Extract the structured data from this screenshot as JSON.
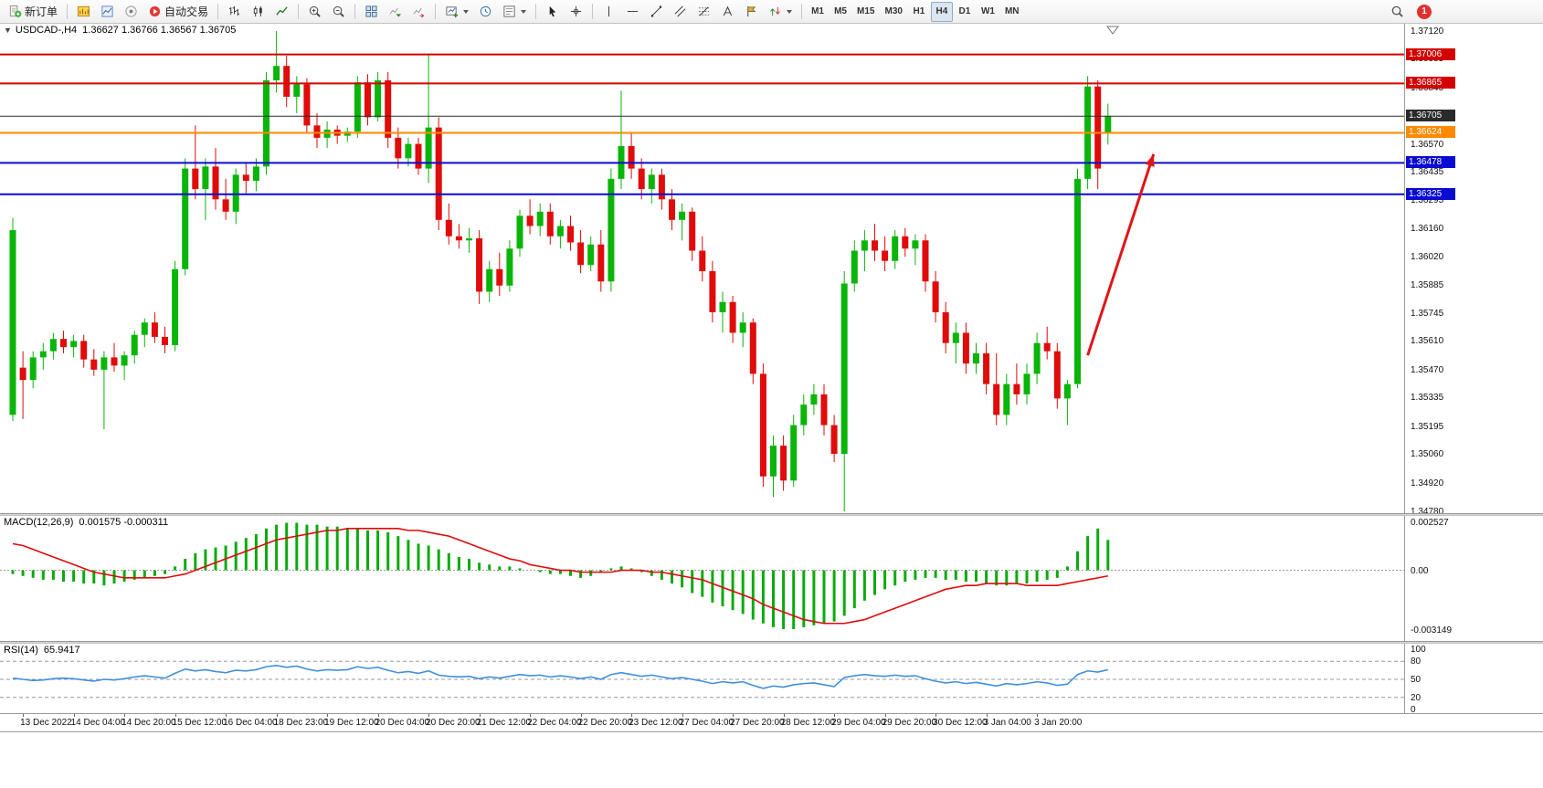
{
  "toolbar": {
    "new_order_label": "新订单",
    "auto_trading_label": "自动交易",
    "timeframes": [
      "M1",
      "M5",
      "M15",
      "M30",
      "H1",
      "H4",
      "D1",
      "W1",
      "MN"
    ],
    "active_timeframe": "H4",
    "notification_count": "1"
  },
  "chart": {
    "collapse_glyph": "▼",
    "symbol_period": "USDCAD-,H4",
    "ohlc": "1.36627 1.36766 1.36567 1.36705"
  },
  "indicators": {
    "macd": {
      "name": "MACD(12,26,9)",
      "values": "0.001575 -0.000311"
    },
    "rsi": {
      "name": "RSI(14)",
      "values": "65.9417"
    }
  },
  "chart_data": {
    "type": "candlestick",
    "symbol": "USDCAD",
    "period": "H4",
    "price_range": {
      "top": 1.3712,
      "bottom": 1.3478
    },
    "colors": {
      "up": "#09b509",
      "down": "#e00b0b",
      "macd_hist": "#0caa0c",
      "macd_signal": "#e00b0b",
      "rsi_line": "#3f8fdd",
      "arrow": "#e01515"
    },
    "candles": [
      [
        1.3525,
        1.3621,
        1.3522,
        1.3615
      ],
      [
        1.3548,
        1.3556,
        1.3523,
        1.3542
      ],
      [
        1.3542,
        1.3556,
        1.3538,
        1.3553
      ],
      [
        1.3553,
        1.356,
        1.3547,
        1.3556
      ],
      [
        1.3556,
        1.3565,
        1.3552,
        1.3562
      ],
      [
        1.3562,
        1.3566,
        1.3555,
        1.3558
      ],
      [
        1.3558,
        1.3564,
        1.3553,
        1.3561
      ],
      [
        1.3561,
        1.3564,
        1.3548,
        1.3552
      ],
      [
        1.3552,
        1.3557,
        1.3544,
        1.3547
      ],
      [
        1.3547,
        1.3556,
        1.3518,
        1.3553
      ],
      [
        1.3553,
        1.356,
        1.3546,
        1.3549
      ],
      [
        1.3549,
        1.3556,
        1.3542,
        1.3554
      ],
      [
        1.3554,
        1.3566,
        1.355,
        1.3564
      ],
      [
        1.3564,
        1.3572,
        1.3558,
        1.357
      ],
      [
        1.357,
        1.3575,
        1.356,
        1.3563
      ],
      [
        1.3563,
        1.3568,
        1.3555,
        1.3559
      ],
      [
        1.3559,
        1.36,
        1.3556,
        1.3596
      ],
      [
        1.3596,
        1.365,
        1.3593,
        1.3645
      ],
      [
        1.3645,
        1.3666,
        1.363,
        1.3635
      ],
      [
        1.3635,
        1.365,
        1.362,
        1.3646
      ],
      [
        1.3646,
        1.3655,
        1.3625,
        1.363
      ],
      [
        1.363,
        1.364,
        1.362,
        1.3624
      ],
      [
        1.3624,
        1.3645,
        1.3618,
        1.3642
      ],
      [
        1.3642,
        1.3648,
        1.3633,
        1.3639
      ],
      [
        1.3639,
        1.365,
        1.3634,
        1.3646
      ],
      [
        1.3646,
        1.3692,
        1.3642,
        1.3688
      ],
      [
        1.3688,
        1.3712,
        1.3682,
        1.3695
      ],
      [
        1.3695,
        1.37,
        1.3675,
        1.368
      ],
      [
        1.368,
        1.369,
        1.3672,
        1.3686
      ],
      [
        1.3686,
        1.3689,
        1.3662,
        1.3666
      ],
      [
        1.3666,
        1.3672,
        1.3655,
        1.366
      ],
      [
        1.366,
        1.3668,
        1.3655,
        1.3664
      ],
      [
        1.3664,
        1.3666,
        1.3657,
        1.3661
      ],
      [
        1.3661,
        1.3665,
        1.3658,
        1.3663
      ],
      [
        1.3663,
        1.369,
        1.366,
        1.3687
      ],
      [
        1.3687,
        1.3691,
        1.3666,
        1.367
      ],
      [
        1.367,
        1.3692,
        1.3668,
        1.3688
      ],
      [
        1.3688,
        1.3692,
        1.3655,
        1.366
      ],
      [
        1.366,
        1.3665,
        1.3645,
        1.365
      ],
      [
        1.365,
        1.366,
        1.3646,
        1.3657
      ],
      [
        1.3657,
        1.366,
        1.3642,
        1.3645
      ],
      [
        1.3645,
        1.3701,
        1.3638,
        1.3665
      ],
      [
        1.3665,
        1.367,
        1.3615,
        1.362
      ],
      [
        1.362,
        1.3628,
        1.3608,
        1.3612
      ],
      [
        1.3612,
        1.3618,
        1.3606,
        1.361
      ],
      [
        1.361,
        1.3616,
        1.3604,
        1.3611
      ],
      [
        1.3611,
        1.3615,
        1.3579,
        1.3585
      ],
      [
        1.3585,
        1.36,
        1.358,
        1.3596
      ],
      [
        1.3596,
        1.3604,
        1.3583,
        1.3588
      ],
      [
        1.3588,
        1.361,
        1.3585,
        1.3606
      ],
      [
        1.3606,
        1.3625,
        1.3602,
        1.3622
      ],
      [
        1.3622,
        1.363,
        1.3613,
        1.3617
      ],
      [
        1.3617,
        1.3628,
        1.3612,
        1.3624
      ],
      [
        1.3624,
        1.3628,
        1.3608,
        1.3612
      ],
      [
        1.3612,
        1.362,
        1.3606,
        1.3617
      ],
      [
        1.3617,
        1.3622,
        1.3605,
        1.3609
      ],
      [
        1.3609,
        1.3615,
        1.3594,
        1.3598
      ],
      [
        1.3598,
        1.3612,
        1.3595,
        1.3608
      ],
      [
        1.3608,
        1.3615,
        1.3585,
        1.359
      ],
      [
        1.359,
        1.3645,
        1.3585,
        1.364
      ],
      [
        1.364,
        1.3683,
        1.3635,
        1.3656
      ],
      [
        1.3656,
        1.3662,
        1.364,
        1.3645
      ],
      [
        1.3645,
        1.365,
        1.363,
        1.3635
      ],
      [
        1.3635,
        1.3645,
        1.3628,
        1.3642
      ],
      [
        1.3642,
        1.3645,
        1.3625,
        1.363
      ],
      [
        1.363,
        1.3635,
        1.3615,
        1.362
      ],
      [
        1.362,
        1.3628,
        1.361,
        1.3624
      ],
      [
        1.3624,
        1.3626,
        1.36,
        1.3605
      ],
      [
        1.3605,
        1.3612,
        1.359,
        1.3595
      ],
      [
        1.3595,
        1.36,
        1.357,
        1.3575
      ],
      [
        1.3575,
        1.3585,
        1.3565,
        1.358
      ],
      [
        1.358,
        1.3583,
        1.356,
        1.3565
      ],
      [
        1.3565,
        1.3575,
        1.3558,
        1.357
      ],
      [
        1.357,
        1.3572,
        1.354,
        1.3545
      ],
      [
        1.3545,
        1.355,
        1.349,
        1.3495
      ],
      [
        1.3495,
        1.3515,
        1.3485,
        1.351
      ],
      [
        1.351,
        1.3515,
        1.3488,
        1.3493
      ],
      [
        1.3493,
        1.3525,
        1.349,
        1.352
      ],
      [
        1.352,
        1.3535,
        1.3515,
        1.353
      ],
      [
        1.353,
        1.354,
        1.3525,
        1.3535
      ],
      [
        1.3535,
        1.354,
        1.3515,
        1.352
      ],
      [
        1.352,
        1.3525,
        1.3502,
        1.3506
      ],
      [
        1.3506,
        1.3595,
        1.3478,
        1.3589
      ],
      [
        1.3589,
        1.361,
        1.3585,
        1.3605
      ],
      [
        1.3605,
        1.3615,
        1.3595,
        1.361
      ],
      [
        1.361,
        1.3618,
        1.36,
        1.3605
      ],
      [
        1.3605,
        1.3612,
        1.3595,
        1.36
      ],
      [
        1.36,
        1.3615,
        1.3596,
        1.3612
      ],
      [
        1.3612,
        1.3616,
        1.3602,
        1.3606
      ],
      [
        1.3606,
        1.3613,
        1.3598,
        1.361
      ],
      [
        1.361,
        1.3613,
        1.3585,
        1.359
      ],
      [
        1.359,
        1.3595,
        1.357,
        1.3575
      ],
      [
        1.3575,
        1.358,
        1.3555,
        1.356
      ],
      [
        1.356,
        1.357,
        1.355,
        1.3565
      ],
      [
        1.3565,
        1.357,
        1.3545,
        1.355
      ],
      [
        1.355,
        1.356,
        1.3545,
        1.3555
      ],
      [
        1.3555,
        1.356,
        1.3535,
        1.354
      ],
      [
        1.354,
        1.3555,
        1.352,
        1.3525
      ],
      [
        1.3525,
        1.3545,
        1.352,
        1.354
      ],
      [
        1.354,
        1.355,
        1.353,
        1.3535
      ],
      [
        1.3535,
        1.355,
        1.353,
        1.3545
      ],
      [
        1.3545,
        1.3565,
        1.354,
        1.356
      ],
      [
        1.356,
        1.3568,
        1.3552,
        1.3556
      ],
      [
        1.3556,
        1.356,
        1.3528,
        1.3533
      ],
      [
        1.3533,
        1.3542,
        1.352,
        1.354
      ],
      [
        1.354,
        1.3645,
        1.3538,
        1.364
      ],
      [
        1.364,
        1.369,
        1.3635,
        1.3685
      ],
      [
        1.3685,
        1.3688,
        1.3635,
        1.3645
      ],
      [
        1.36627,
        1.36766,
        1.36567,
        1.36705
      ]
    ],
    "levels": [
      {
        "price": 1.37006,
        "color": "#d40000",
        "width": 2
      },
      {
        "price": 1.36865,
        "color": "#d40000",
        "width": 2
      },
      {
        "price": 1.36705,
        "color": "#2a2a2a",
        "width": 1
      },
      {
        "price": 1.36624,
        "color": "#ff8a00",
        "width": 2
      },
      {
        "price": 1.36478,
        "color": "#0a0ad0",
        "width": 2
      },
      {
        "price": 1.36325,
        "color": "#0a0ad0",
        "width": 2
      }
    ],
    "price_axis": [
      "1.37120",
      "1.36985",
      "1.36845",
      "1.36705",
      "1.36570",
      "1.36435",
      "1.36295",
      "1.36160",
      "1.36020",
      "1.35885",
      "1.35745",
      "1.35610",
      "1.35470",
      "1.35335",
      "1.35195",
      "1.35060",
      "1.34920",
      "1.34780"
    ],
    "axis_tags": [
      {
        "text": "1.37006",
        "price": 1.37006,
        "color": "#d40000"
      },
      {
        "text": "1.36865",
        "price": 1.36865,
        "color": "#d40000"
      },
      {
        "text": "1.36705",
        "price": 1.36705,
        "color": "#2a2a2a"
      },
      {
        "text": "1.36624",
        "price": 1.36624,
        "color": "#ff8a00"
      },
      {
        "text": "1.36478",
        "price": 1.36478,
        "color": "#0a0ad0"
      },
      {
        "text": "1.36325",
        "price": 1.36325,
        "color": "#0a0ad0"
      }
    ],
    "time_labels": [
      "13 Dec 2022",
      "14 Dec 04:00",
      "14 Dec 20:00",
      "15 Dec 12:00",
      "16 Dec 04:00",
      "18 Dec 23:00",
      "19 Dec 12:00",
      "20 Dec 04:00",
      "20 Dec 20:00",
      "21 Dec 12:00",
      "22 Dec 04:00",
      "22 Dec 20:00",
      "23 Dec 12:00",
      "27 Dec 04:00",
      "27 Dec 20:00",
      "28 Dec 12:00",
      "29 Dec 04:00",
      "29 Dec 20:00",
      "30 Dec 12:00",
      "3 Jan 04:00",
      "3 Jan 20:00"
    ],
    "time_label_start_index": 1,
    "time_label_step": 5,
    "macd": {
      "max": 0.002527,
      "min": -0.003149,
      "scale_labels": [
        "0.002527",
        "0.00",
        "-0.003149"
      ],
      "scale_values": [
        0.002527,
        0,
        -0.003149
      ],
      "histogram": [
        -0.0002,
        -0.0003,
        -0.0004,
        -0.0005,
        -0.0005,
        -0.0006,
        -0.0006,
        -0.0007,
        -0.0007,
        -0.0008,
        -0.0007,
        -0.0006,
        -0.0005,
        -0.0004,
        -0.0003,
        -0.0002,
        0.0002,
        0.0006,
        0.0009,
        0.0011,
        0.0012,
        0.0013,
        0.0015,
        0.0017,
        0.0019,
        0.0022,
        0.0024,
        0.0025,
        0.0025,
        0.0024,
        0.0024,
        0.0023,
        0.0023,
        0.0022,
        0.0022,
        0.0021,
        0.0021,
        0.002,
        0.0018,
        0.0016,
        0.0014,
        0.0013,
        0.0011,
        0.0009,
        0.0007,
        0.0006,
        0.0004,
        0.0003,
        0.0002,
        0.0002,
        0.0001,
        0.0,
        -0.0001,
        -0.0002,
        -0.0002,
        -0.0003,
        -0.0004,
        -0.0003,
        -0.0001,
        0.0001,
        0.0002,
        0.0001,
        -0.0001,
        -0.0003,
        -0.0005,
        -0.0007,
        -0.0009,
        -0.0012,
        -0.0014,
        -0.0017,
        -0.0019,
        -0.0021,
        -0.0023,
        -0.0026,
        -0.0028,
        -0.003,
        -0.0031,
        -0.0031,
        -0.003,
        -0.0029,
        -0.0028,
        -0.0027,
        -0.0024,
        -0.002,
        -0.0016,
        -0.0013,
        -0.001,
        -0.0008,
        -0.0006,
        -0.0005,
        -0.0004,
        -0.0004,
        -0.0005,
        -0.0005,
        -0.0006,
        -0.0006,
        -0.0007,
        -0.0008,
        -0.0008,
        -0.0007,
        -0.0007,
        -0.0006,
        -0.0005,
        -0.0004,
        0.0002,
        0.001,
        0.0018,
        0.0022,
        0.0016
      ],
      "signal": [
        0.0014,
        0.0013,
        0.0011,
        0.0009,
        0.0007,
        0.0005,
        0.0003,
        0.0001,
        -0.0001,
        -0.0002,
        -0.0003,
        -0.0004,
        -0.0004,
        -0.0004,
        -0.0004,
        -0.0004,
        -0.0003,
        -0.0002,
        0.0,
        0.0002,
        0.0004,
        0.0006,
        0.0008,
        0.001,
        0.0012,
        0.0014,
        0.0016,
        0.0017,
        0.0018,
        0.0019,
        0.002,
        0.0021,
        0.0021,
        0.0022,
        0.0022,
        0.0022,
        0.0022,
        0.0022,
        0.0022,
        0.0021,
        0.0021,
        0.002,
        0.0019,
        0.0018,
        0.0016,
        0.0014,
        0.0012,
        0.001,
        0.0008,
        0.0006,
        0.0005,
        0.0003,
        0.0002,
        0.0001,
        0.0,
        0.0,
        -0.0001,
        -0.0001,
        -0.0001,
        -0.0001,
        0.0,
        0.0,
        0.0,
        -0.0001,
        -0.0001,
        -0.0002,
        -0.0003,
        -0.0004,
        -0.0005,
        -0.0007,
        -0.0009,
        -0.0011,
        -0.0013,
        -0.0015,
        -0.0018,
        -0.002,
        -0.0022,
        -0.0024,
        -0.0026,
        -0.0027,
        -0.0028,
        -0.0028,
        -0.0028,
        -0.0027,
        -0.0026,
        -0.0024,
        -0.0022,
        -0.002,
        -0.0018,
        -0.0016,
        -0.0014,
        -0.0012,
        -0.001,
        -0.0009,
        -0.0008,
        -0.0008,
        -0.0007,
        -0.0007,
        -0.0007,
        -0.0007,
        -0.0008,
        -0.0008,
        -0.0008,
        -0.0008,
        -0.0007,
        -0.0006,
        -0.0005,
        -0.0004,
        -0.0003
      ]
    },
    "rsi": {
      "max": 100,
      "min": 0,
      "levels": [
        80,
        50,
        20
      ],
      "scale_labels": [
        "100",
        "80",
        "50",
        "20",
        "0"
      ],
      "scale_values": [
        100,
        80,
        50,
        20,
        0
      ],
      "values": [
        52,
        50,
        48,
        49,
        51,
        52,
        51,
        49,
        47,
        50,
        49,
        51,
        54,
        56,
        54,
        52,
        60,
        67,
        64,
        66,
        63,
        61,
        65,
        64,
        66,
        71,
        73,
        70,
        72,
        67,
        64,
        66,
        65,
        66,
        71,
        68,
        70,
        65,
        61,
        63,
        60,
        64,
        57,
        55,
        54,
        55,
        51,
        54,
        52,
        55,
        58,
        56,
        57,
        54,
        56,
        54,
        51,
        54,
        50,
        58,
        61,
        58,
        55,
        57,
        54,
        51,
        53,
        50,
        47,
        43,
        46,
        44,
        46,
        40,
        35,
        39,
        37,
        41,
        43,
        44,
        41,
        38,
        53,
        56,
        58,
        56,
        55,
        57,
        55,
        56,
        51,
        47,
        44,
        46,
        43,
        45,
        42,
        39,
        43,
        41,
        43,
        46,
        44,
        40,
        42,
        58,
        64,
        62,
        66
      ]
    },
    "arrow": {
      "from_index": 106,
      "from_price": 1.3554,
      "to_index": 112.5,
      "to_price": 1.3652
    }
  }
}
